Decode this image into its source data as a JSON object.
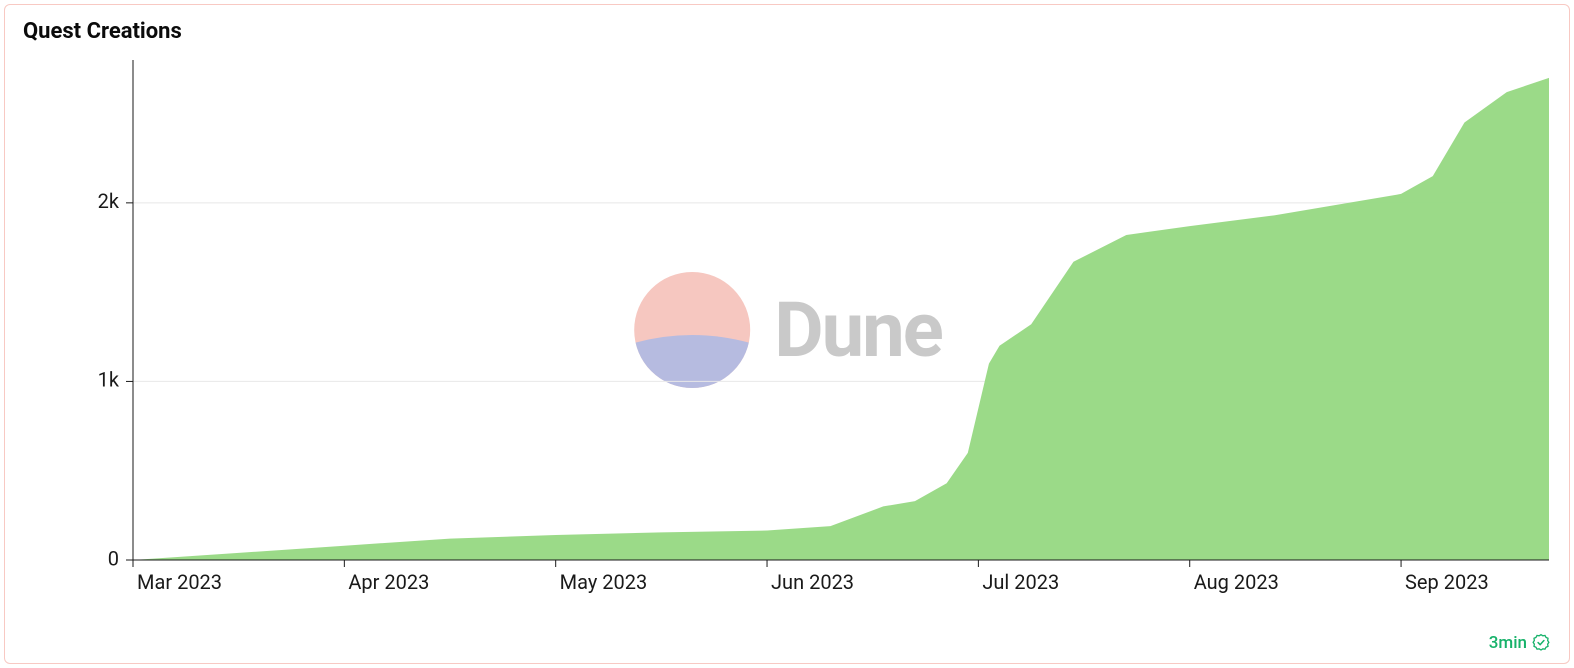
{
  "card": {
    "title": "Quest Creations",
    "border_color": "#f8c9c3",
    "background_color": "#ffffff"
  },
  "chart": {
    "type": "area",
    "fill_color": "#96d882",
    "stroke_color": "#96d882",
    "background_color": "#ffffff",
    "grid_color": "#e8e8e8",
    "axis_color": "#1a1a1a",
    "title_fontsize": 22,
    "label_fontsize": 20,
    "x_range": [
      0,
      6.7
    ],
    "y_range": [
      0,
      2800
    ],
    "y_ticks": [
      {
        "value": 0,
        "label": "0"
      },
      {
        "value": 1000,
        "label": "1k"
      },
      {
        "value": 2000,
        "label": "2k"
      }
    ],
    "x_ticks": [
      {
        "value": 0,
        "label": "Mar 2023"
      },
      {
        "value": 1,
        "label": "Apr 2023"
      },
      {
        "value": 2,
        "label": "May 2023"
      },
      {
        "value": 3,
        "label": "Jun 2023"
      },
      {
        "value": 4,
        "label": "Jul 2023"
      },
      {
        "value": 5,
        "label": "Aug 2023"
      },
      {
        "value": 6,
        "label": "Sep 2023"
      }
    ],
    "series": [
      {
        "x": 0.0,
        "y": 0
      },
      {
        "x": 0.5,
        "y": 40
      },
      {
        "x": 1.0,
        "y": 80
      },
      {
        "x": 1.5,
        "y": 120
      },
      {
        "x": 2.0,
        "y": 140
      },
      {
        "x": 2.5,
        "y": 155
      },
      {
        "x": 3.0,
        "y": 165
      },
      {
        "x": 3.3,
        "y": 190
      },
      {
        "x": 3.55,
        "y": 300
      },
      {
        "x": 3.7,
        "y": 330
      },
      {
        "x": 3.85,
        "y": 430
      },
      {
        "x": 3.95,
        "y": 600
      },
      {
        "x": 4.05,
        "y": 1100
      },
      {
        "x": 4.1,
        "y": 1200
      },
      {
        "x": 4.25,
        "y": 1320
      },
      {
        "x": 4.45,
        "y": 1670
      },
      {
        "x": 4.7,
        "y": 1820
      },
      {
        "x": 5.0,
        "y": 1870
      },
      {
        "x": 5.4,
        "y": 1930
      },
      {
        "x": 5.75,
        "y": 2000
      },
      {
        "x": 6.0,
        "y": 2050
      },
      {
        "x": 6.15,
        "y": 2150
      },
      {
        "x": 6.3,
        "y": 2450
      },
      {
        "x": 6.5,
        "y": 2620
      },
      {
        "x": 6.7,
        "y": 2700
      }
    ]
  },
  "watermark": {
    "text": "Dune",
    "text_color": "#c9c9c9",
    "logo_top_color": "#f6c7c0",
    "logo_bottom_color": "#b6bbe0",
    "fontsize": 76
  },
  "footer": {
    "time_label": "3min",
    "time_color": "#17b26a",
    "badge_color": "#17b26a"
  }
}
